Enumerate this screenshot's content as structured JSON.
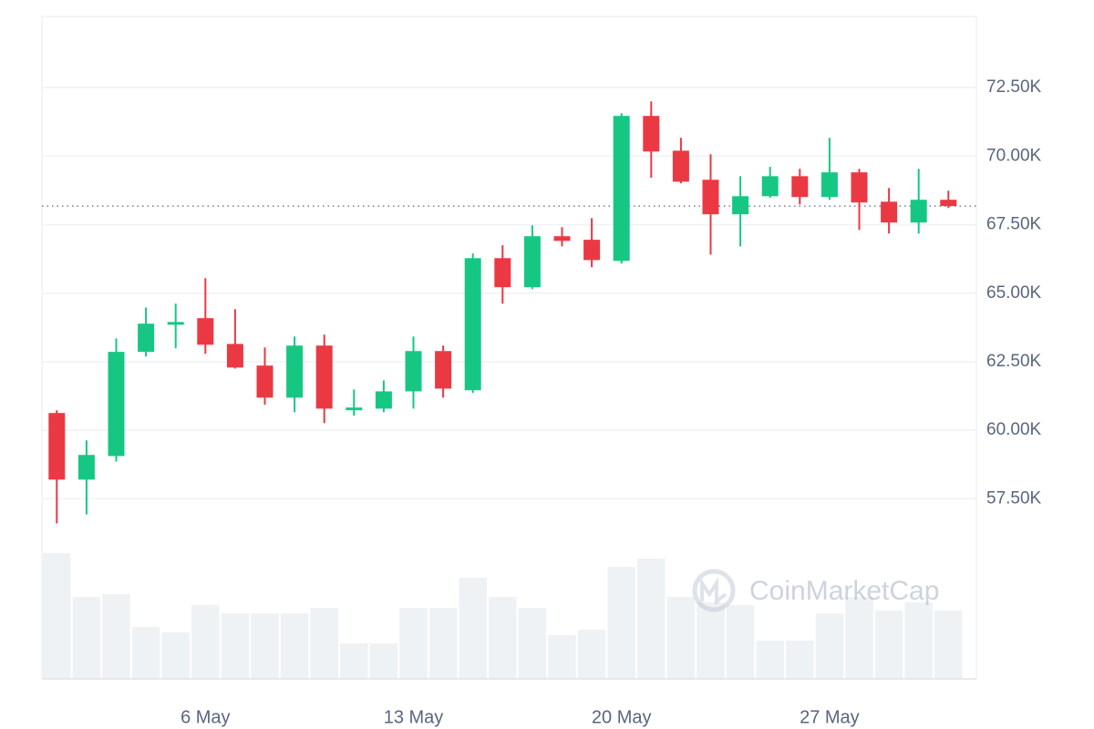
{
  "chart_data": {
    "type": "candlestick",
    "categories": [
      null,
      null,
      null,
      null,
      null,
      "6 May",
      null,
      null,
      null,
      null,
      null,
      null,
      "13 May",
      null,
      null,
      null,
      null,
      null,
      null,
      "20 May",
      null,
      null,
      null,
      null,
      null,
      null,
      "27 May",
      null,
      null,
      null,
      null
    ],
    "open": [
      60630,
      58200,
      59060,
      62860,
      63850,
      64090,
      63150,
      62360,
      61190,
      63090,
      60730,
      60790,
      61420,
      62890,
      61460,
      66280,
      65220,
      67080,
      66950,
      66180,
      71470,
      70200,
      69140,
      67880,
      68540,
      69270,
      68510,
      69410,
      68340,
      67580,
      68410
    ],
    "high": [
      60730,
      59630,
      63350,
      64480,
      64620,
      65550,
      64420,
      63020,
      63420,
      63490,
      61490,
      61820,
      63420,
      63090,
      66450,
      66750,
      67480,
      67410,
      67740,
      71570,
      72000,
      70670,
      70070,
      69270,
      69610,
      69540,
      70670,
      69540,
      68840,
      69540,
      68740
    ],
    "low": [
      56600,
      56930,
      58860,
      62690,
      62990,
      62790,
      62250,
      60930,
      60660,
      60260,
      60530,
      60660,
      60790,
      61190,
      61360,
      64620,
      65150,
      66710,
      65950,
      66080,
      69210,
      69010,
      66410,
      66710,
      68480,
      68240,
      68410,
      67310,
      67180,
      67180,
      68110
    ],
    "close": [
      58200,
      59100,
      62860,
      63890,
      63950,
      63120,
      62290,
      61190,
      63090,
      60790,
      60830,
      61420,
      62890,
      61520,
      66280,
      65220,
      67080,
      66910,
      66210,
      71470,
      70170,
      69070,
      67880,
      68540,
      69270,
      68510,
      69410,
      68310,
      67580,
      68410,
      68180
    ],
    "volume": [
      46,
      30,
      31,
      19,
      17,
      27,
      24,
      24,
      24,
      26,
      13,
      13,
      26,
      26,
      37,
      30,
      26,
      16,
      18,
      41,
      44,
      30,
      28,
      27,
      14,
      14,
      24,
      30,
      25,
      28,
      25
    ],
    "volume_lim": [
      0,
      50
    ],
    "current_price": 68180,
    "up_color": "#16c784",
    "down_color": "#ea3943",
    "volume_color": "#eff2f5",
    "ylim": [
      55750,
      75100
    ],
    "yticks": [
      {
        "value": 57500,
        "label": "57.50K"
      },
      {
        "value": 60000,
        "label": "60.00K"
      },
      {
        "value": 62500,
        "label": "62.50K"
      },
      {
        "value": 65000,
        "label": "65.00K"
      },
      {
        "value": 67500,
        "label": "67.50K"
      },
      {
        "value": 70000,
        "label": "70.00K"
      },
      {
        "value": 72500,
        "label": "72.50K"
      }
    ],
    "grid": true,
    "watermark": "CoinMarketCap"
  }
}
